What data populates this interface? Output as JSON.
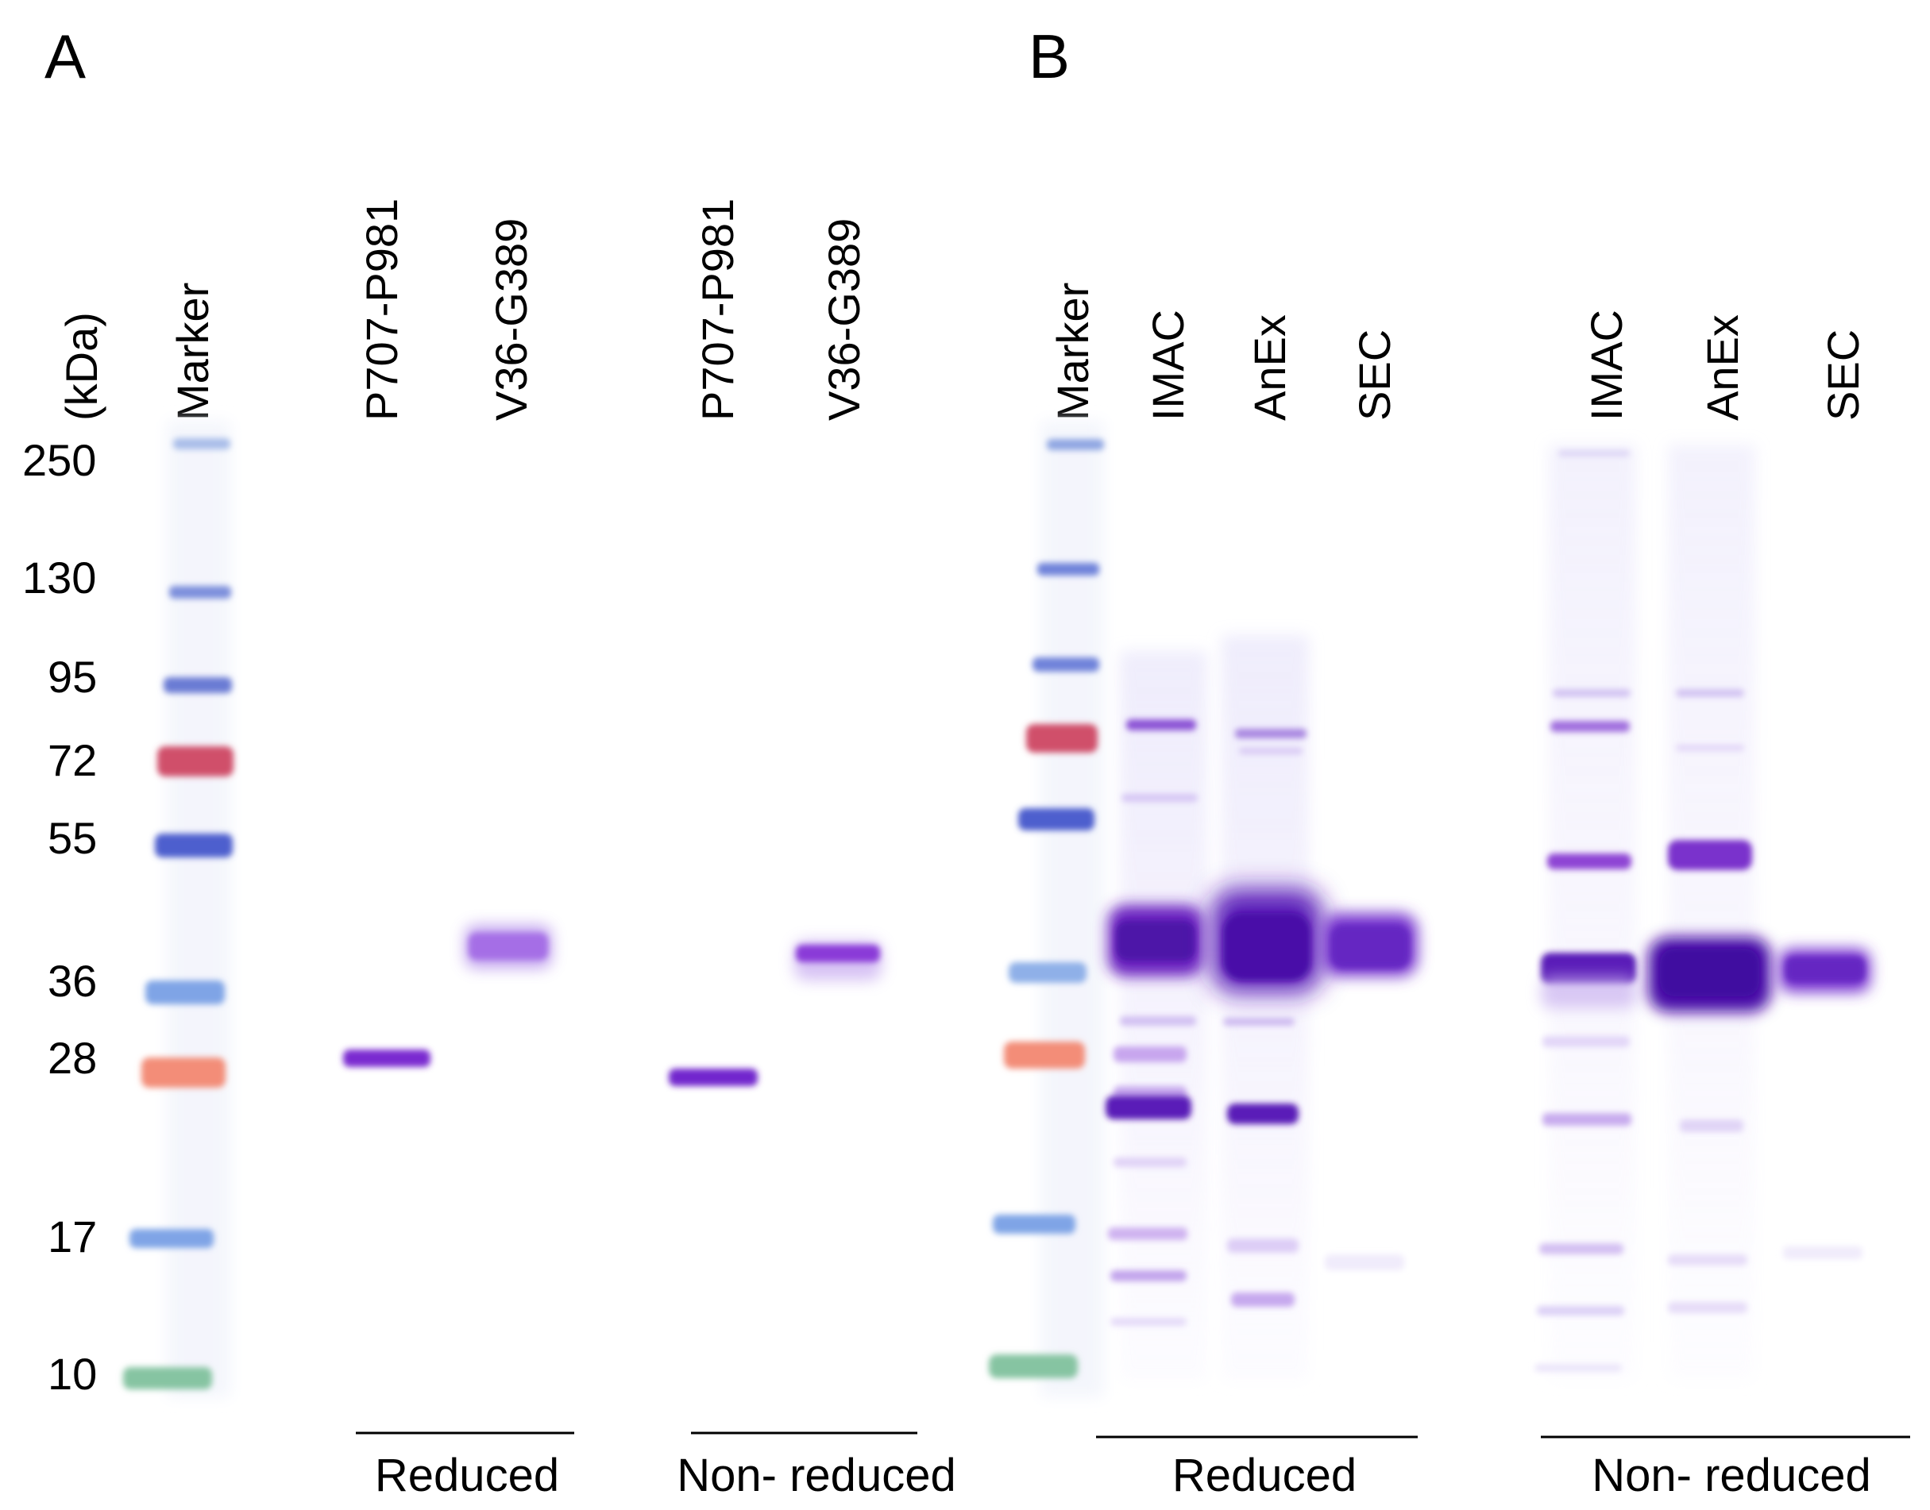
{
  "figure": {
    "panels": [
      {
        "letter": "A",
        "unit_label": "(kDa)",
        "mw_labels": [
          "250",
          "130",
          "95",
          "72",
          "55",
          "36",
          "28",
          "17",
          "10"
        ],
        "lane_labels": [
          "Marker",
          "P707-P981",
          "V36-G389",
          "P707-P981",
          "V36-G389"
        ],
        "conditions": [
          "Reduced",
          "Non- reduced"
        ]
      },
      {
        "letter": "B",
        "lane_labels": [
          "Marker",
          "IMAC",
          "AnEx",
          "SEC",
          "IMAC",
          "AnEx",
          "SEC"
        ],
        "conditions": [
          "Reduced",
          "Non- reduced"
        ]
      }
    ]
  },
  "colors": {
    "marker_blue": "#5a6fd0",
    "marker_red": "#d0506a",
    "marker_orange": "#f08070",
    "marker_lightblue": "#6f9be0",
    "marker_green": "#6cb890",
    "band_purple": "#5a1fb8",
    "band_violet": "#8a3ad8"
  }
}
